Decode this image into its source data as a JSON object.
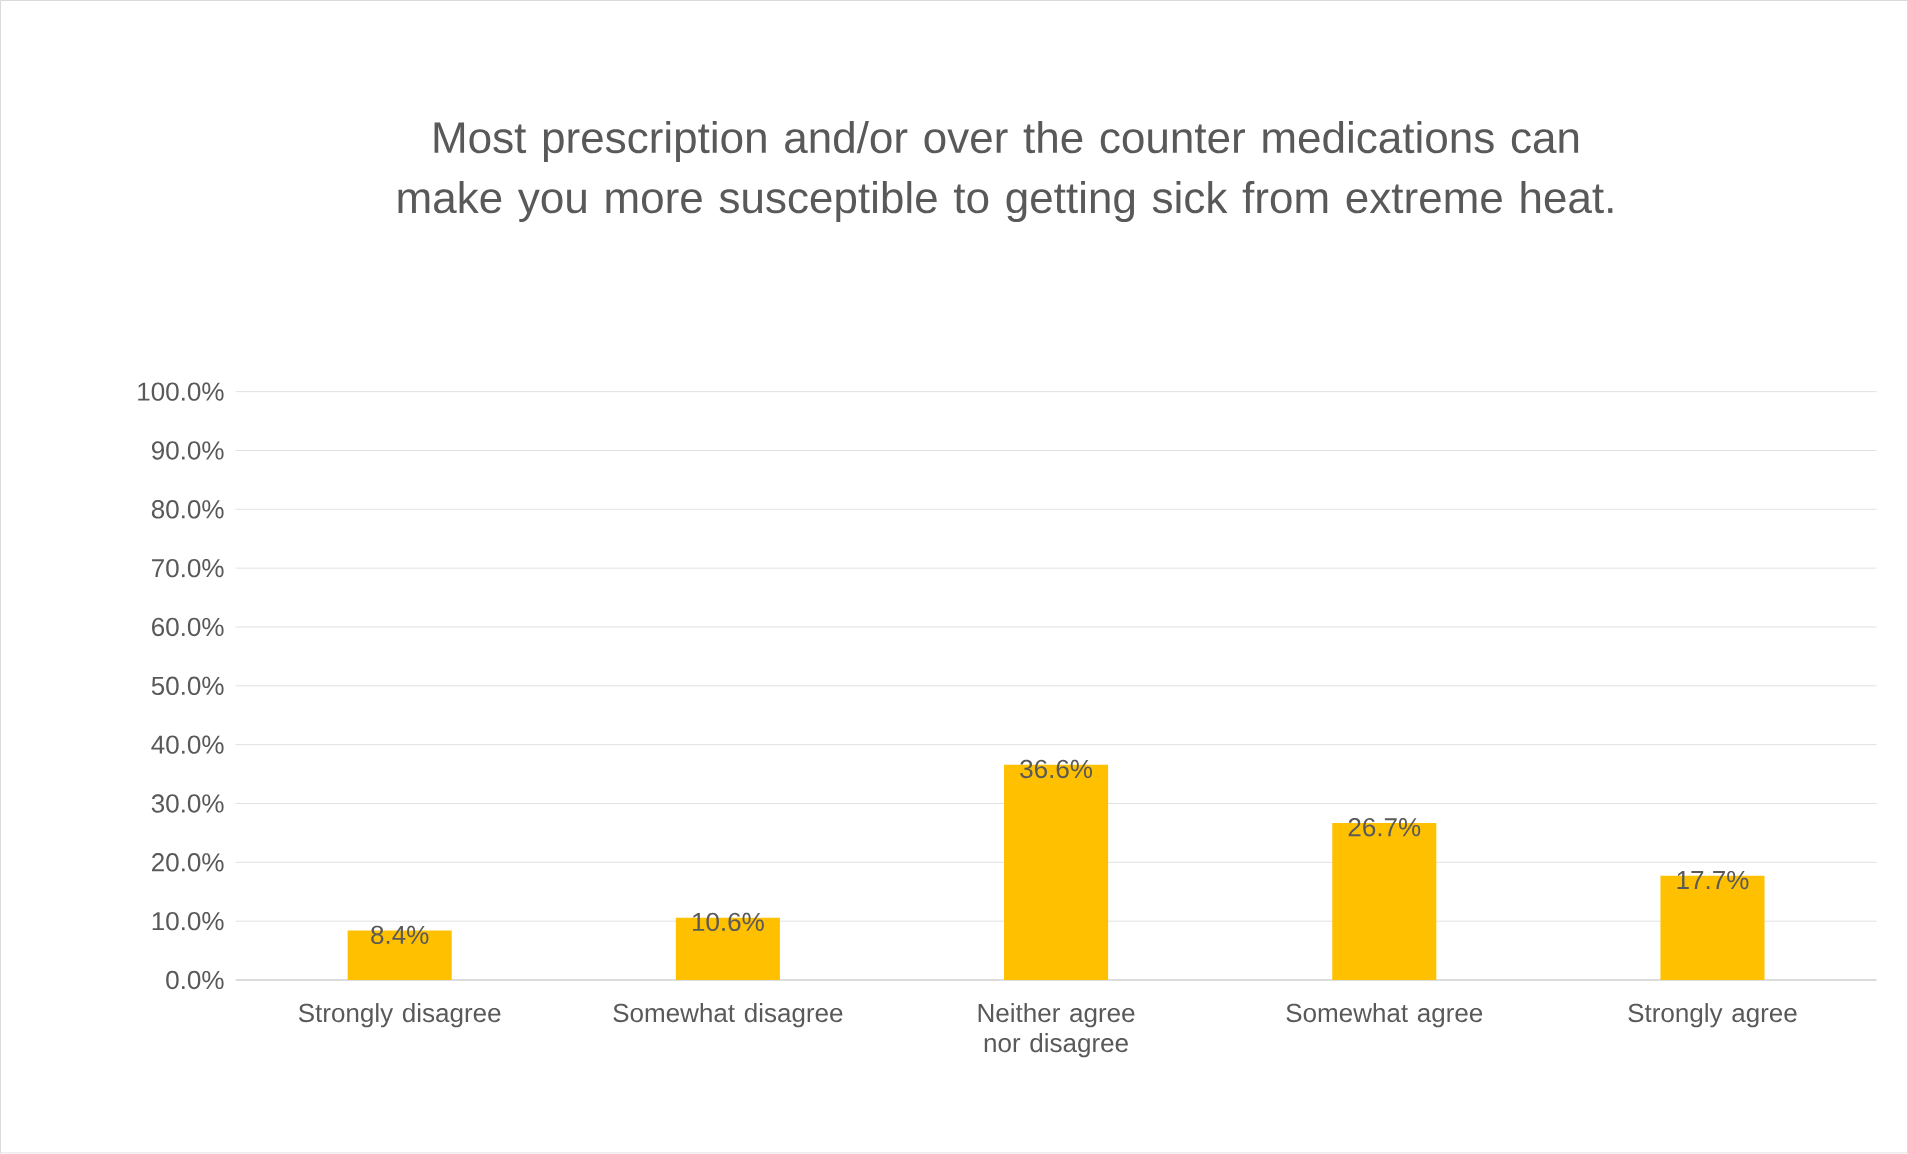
{
  "chart_data": {
    "type": "bar",
    "title": "Most prescription and/or over the counter medications can make you more susceptible to getting sick from extreme heat.",
    "categories": [
      "Strongly disagree",
      "Somewhat disagree",
      "Neither agree nor disagree",
      "Somewhat agree",
      "Strongly agree"
    ],
    "values": [
      8.4,
      10.6,
      36.6,
      26.7,
      17.7
    ],
    "value_labels": [
      "8.4%",
      "10.6%",
      "36.6%",
      "26.7%",
      "17.7%"
    ],
    "color": "#ffc000",
    "ylim": [
      0,
      100
    ],
    "yticks": [
      {
        "value": 0,
        "label": "0.0%"
      },
      {
        "value": 10,
        "label": "10.0%"
      },
      {
        "value": 20,
        "label": "20.0%"
      },
      {
        "value": 30,
        "label": "30.0%"
      },
      {
        "value": 40,
        "label": "40.0%"
      },
      {
        "value": 50,
        "label": "50.0%"
      },
      {
        "value": 60,
        "label": "60.0%"
      },
      {
        "value": 70,
        "label": "70.0%"
      },
      {
        "value": 80,
        "label": "80.0%"
      },
      {
        "value": 90,
        "label": "90.0%"
      },
      {
        "value": 100,
        "label": "100.0%"
      }
    ],
    "grid": "y"
  }
}
